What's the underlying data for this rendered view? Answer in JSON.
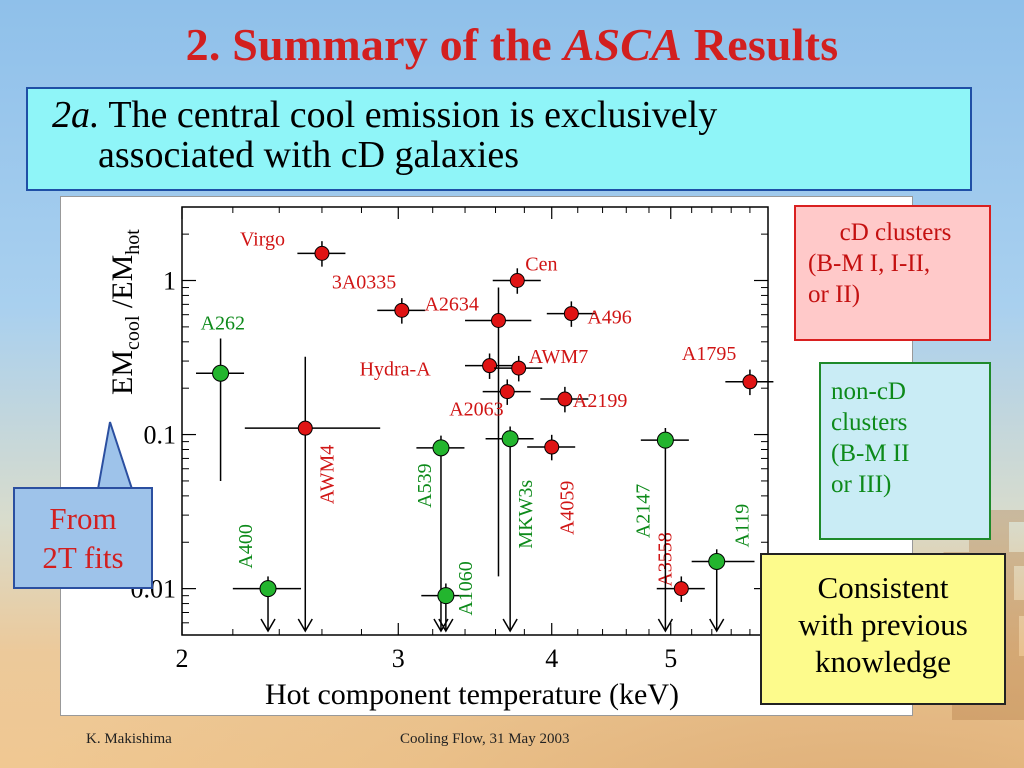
{
  "slide": {
    "title_prefix": "2. Summary of the",
    "title_italic": "ASCA",
    "title_suffix": "Results",
    "bullet_num": "2a.",
    "bullet_line1": "The central cool emission is exclusively",
    "bullet_line2": "associated with cD galaxies",
    "footer_left": "K. Makishima",
    "footer_center": "Cooling Flow, 31 May 2003"
  },
  "boxes": {
    "cd": [
      "cD clusters",
      "(B-M I, I-II,",
      "or II)"
    ],
    "noncd": [
      "non-cD",
      "clusters",
      "(B-M II",
      "or III)"
    ],
    "consistent": [
      "Consistent",
      "with previous",
      "knowledge"
    ],
    "from": [
      "From",
      "2T fits"
    ]
  },
  "colors": {
    "cd": "#e01414",
    "noncd": "#23b52e",
    "cd_label": "#d01515",
    "noncd_label": "#0d8a1a",
    "title": "#d21f1f"
  },
  "chart_data": {
    "type": "scatter",
    "xlabel": "Hot component temperature (keV)",
    "ylabel_main": "EM",
    "ylabel_sub1": "cool",
    "ylabel_mid": " /EM",
    "ylabel_sub2": "hot",
    "x_scale": "log",
    "y_scale": "log",
    "xlim": [
      2,
      6
    ],
    "ylim": [
      0.005,
      3
    ],
    "x_ticks": [
      {
        "v": 2,
        "label": "2"
      },
      {
        "v": 3,
        "label": "3"
      },
      {
        "v": 4,
        "label": "4"
      },
      {
        "v": 5,
        "label": "5"
      }
    ],
    "y_ticks": [
      {
        "v": 1,
        "label": "1"
      },
      {
        "v": 0.1,
        "label": "0.1"
      },
      {
        "v": 0.01,
        "label": "0.01"
      }
    ],
    "series": [
      {
        "name": "cD clusters",
        "points": [
          {
            "label": "Virgo",
            "x": 2.6,
            "y": 1.5
          },
          {
            "label": "3A0335",
            "x": 3.02,
            "y": 0.64
          },
          {
            "label": "Cen",
            "x": 3.75,
            "y": 1.0
          },
          {
            "label": "A2634",
            "x": 3.62,
            "y": 0.55,
            "xerr": [
              3.4,
              3.85
            ],
            "yerr": [
              0.012,
              0.9
            ]
          },
          {
            "label": "A496",
            "x": 4.15,
            "y": 0.61
          },
          {
            "label": "Hydra-A",
            "x": 3.56,
            "y": 0.28
          },
          {
            "label": "AWM7",
            "x": 3.76,
            "y": 0.27
          },
          {
            "label": "A2063",
            "x": 3.68,
            "y": 0.19
          },
          {
            "label": "A2199",
            "x": 4.1,
            "y": 0.17
          },
          {
            "label": "A4059",
            "x": 4.0,
            "y": 0.083
          },
          {
            "label": "AWM4",
            "x": 2.52,
            "y": 0.11,
            "xerr": [
              2.25,
              2.9
            ],
            "yerr": [
              0.0065,
              0.32
            ],
            "upper_limit": true
          },
          {
            "label": "A1795",
            "x": 5.8,
            "y": 0.22
          },
          {
            "label": "A3558",
            "x": 5.1,
            "y": 0.01
          }
        ]
      },
      {
        "name": "non-cD clusters",
        "points": [
          {
            "label": "A262",
            "x": 2.15,
            "y": 0.25,
            "yerr": [
              0.05,
              0.42
            ]
          },
          {
            "label": "A400",
            "x": 2.35,
            "y": 0.01,
            "xerr": [
              2.2,
              2.5
            ],
            "upper_limit": true
          },
          {
            "label": "A539",
            "x": 3.25,
            "y": 0.082,
            "upper_limit": true
          },
          {
            "label": "A1060",
            "x": 3.28,
            "y": 0.009,
            "upper_limit": true
          },
          {
            "label": "MKW3s",
            "x": 3.7,
            "y": 0.094,
            "upper_limit": true
          },
          {
            "label": "A2147",
            "x": 4.95,
            "y": 0.092,
            "upper_limit": true
          },
          {
            "label": "A119",
            "x": 5.45,
            "y": 0.015,
            "xerr": [
              5.2,
              5.85
            ],
            "upper_limit": true
          }
        ]
      }
    ]
  }
}
